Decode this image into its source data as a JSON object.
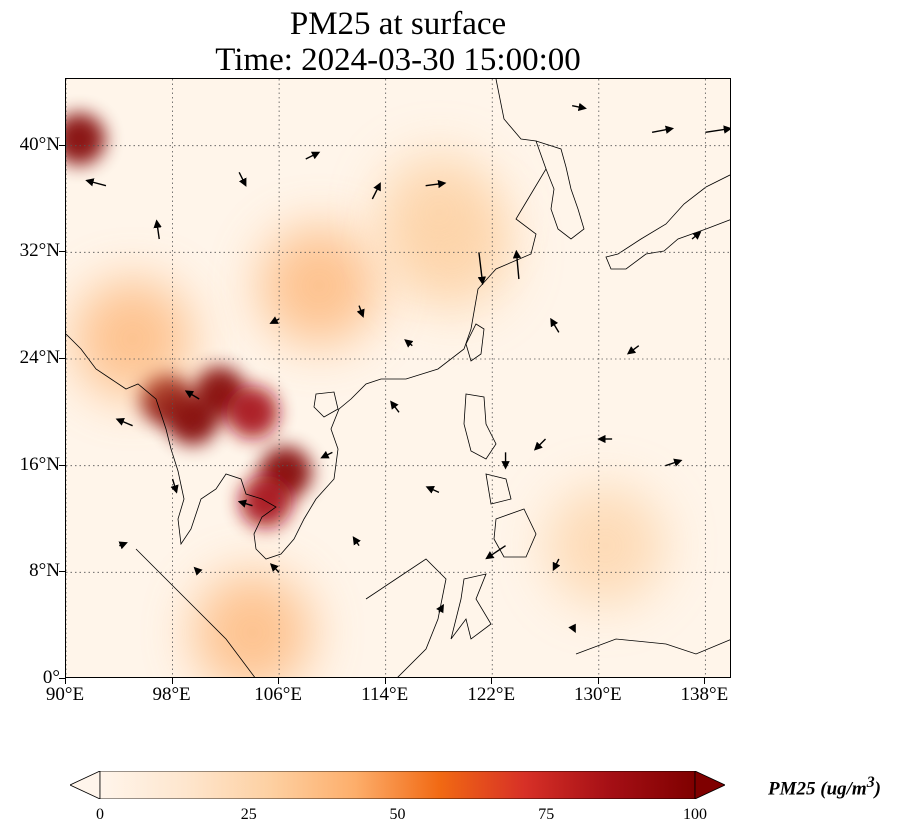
{
  "title": {
    "line1": "PM25 at surface",
    "line2": "Time: 2024-03-30 15:00:00"
  },
  "map": {
    "extent": {
      "lon_min": 90,
      "lon_max": 140,
      "lat_min": 0,
      "lat_max": 45
    },
    "lat_ticks": [
      {
        "value": 0,
        "label": "0°"
      },
      {
        "value": 8,
        "label": "8°N"
      },
      {
        "value": 16,
        "label": "16°N"
      },
      {
        "value": 24,
        "label": "24°N"
      },
      {
        "value": 32,
        "label": "32°N"
      },
      {
        "value": 40,
        "label": "40°N"
      }
    ],
    "lon_ticks": [
      {
        "value": 90,
        "label": "90°E"
      },
      {
        "value": 98,
        "label": "98°E"
      },
      {
        "value": 106,
        "label": "106°E"
      },
      {
        "value": 114,
        "label": "114°E"
      },
      {
        "value": 122,
        "label": "122°E"
      },
      {
        "value": 130,
        "label": "130°E"
      },
      {
        "value": 138,
        "label": "138°E"
      }
    ],
    "gridlines": true,
    "colors": {
      "background": "#fff5ea",
      "coastline": "#000000",
      "grid": "#555555",
      "vector": "#000000"
    },
    "pm25_hotspots": [
      {
        "lon": 97.5,
        "lat": 21.0,
        "value": 100
      },
      {
        "lon": 99.5,
        "lat": 19.5,
        "value": 100
      },
      {
        "lon": 101.5,
        "lat": 21.5,
        "value": 95
      },
      {
        "lon": 104.0,
        "lat": 20.0,
        "value": 80
      },
      {
        "lon": 106.5,
        "lat": 15.5,
        "value": 95
      },
      {
        "lon": 105.0,
        "lat": 13.3,
        "value": 90
      },
      {
        "lon": 91.0,
        "lat": 40.5,
        "value": 100
      },
      {
        "lon": 95.0,
        "lat": 25.5,
        "value": 45
      },
      {
        "lon": 109.0,
        "lat": 29.5,
        "value": 40
      },
      {
        "lon": 119.0,
        "lat": 32.0,
        "value": 35
      },
      {
        "lon": 130.5,
        "lat": 10.0,
        "value": 22
      },
      {
        "lon": 118.0,
        "lat": 35.0,
        "value": 25
      },
      {
        "lon": 104.0,
        "lat": 3.5,
        "value": 45
      }
    ],
    "wind_vectors": [
      {
        "lon": 93,
        "lat": 37,
        "u": -1.5,
        "v": 0.4
      },
      {
        "lon": 97,
        "lat": 33,
        "u": -0.2,
        "v": 1.4
      },
      {
        "lon": 103,
        "lat": 38,
        "u": 0.5,
        "v": -1.0
      },
      {
        "lon": 108,
        "lat": 39,
        "u": 1.0,
        "v": 0.5
      },
      {
        "lon": 113,
        "lat": 36,
        "u": 0.6,
        "v": 1.2
      },
      {
        "lon": 117,
        "lat": 37,
        "u": 1.5,
        "v": 0.2
      },
      {
        "lon": 121,
        "lat": 32,
        "u": 0.3,
        "v": -2.5
      },
      {
        "lon": 124,
        "lat": 30,
        "u": -0.2,
        "v": 2.2
      },
      {
        "lon": 127,
        "lat": 26,
        "u": -0.6,
        "v": 1.0
      },
      {
        "lon": 133,
        "lat": 25,
        "u": -0.8,
        "v": -0.6
      },
      {
        "lon": 137,
        "lat": 33,
        "u": 0.6,
        "v": 0.5
      },
      {
        "lon": 134,
        "lat": 41,
        "u": 1.6,
        "v": 0.3
      },
      {
        "lon": 138,
        "lat": 41,
        "u": 2.0,
        "v": 0.3
      },
      {
        "lon": 128,
        "lat": 43,
        "u": 1.0,
        "v": -0.2
      },
      {
        "lon": 100,
        "lat": 21,
        "u": -1.0,
        "v": 0.6
      },
      {
        "lon": 95,
        "lat": 19,
        "u": -1.2,
        "v": 0.5
      },
      {
        "lon": 98,
        "lat": 15,
        "u": 0.3,
        "v": -1.0
      },
      {
        "lon": 104,
        "lat": 13,
        "u": -1.0,
        "v": 0.3
      },
      {
        "lon": 110,
        "lat": 17,
        "u": -0.8,
        "v": -0.4
      },
      {
        "lon": 115,
        "lat": 20,
        "u": -0.6,
        "v": 0.8
      },
      {
        "lon": 118,
        "lat": 14,
        "u": -0.9,
        "v": 0.4
      },
      {
        "lon": 123,
        "lat": 17,
        "u": 0.0,
        "v": -1.2
      },
      {
        "lon": 126,
        "lat": 18,
        "u": -0.8,
        "v": -0.8
      },
      {
        "lon": 131,
        "lat": 18,
        "u": -1.0,
        "v": 0.0
      },
      {
        "lon": 135,
        "lat": 16,
        "u": 1.2,
        "v": 0.4
      },
      {
        "lon": 123,
        "lat": 10,
        "u": -1.5,
        "v": -1.0
      },
      {
        "lon": 127,
        "lat": 9,
        "u": -0.4,
        "v": -0.8
      },
      {
        "lon": 112,
        "lat": 10,
        "u": -0.4,
        "v": 0.6
      },
      {
        "lon": 106,
        "lat": 8,
        "u": -0.6,
        "v": 0.6
      },
      {
        "lon": 100,
        "lat": 8,
        "u": -0.3,
        "v": 0.3
      },
      {
        "lon": 94,
        "lat": 10,
        "u": 0.5,
        "v": 0.2
      },
      {
        "lon": 112,
        "lat": 28,
        "u": 0.3,
        "v": -0.8
      },
      {
        "lon": 106,
        "lat": 27,
        "u": -0.6,
        "v": -0.3
      },
      {
        "lon": 116,
        "lat": 25,
        "u": -0.5,
        "v": 0.4
      },
      {
        "lon": 118,
        "lat": 5,
        "u": 0.3,
        "v": 0.5
      },
      {
        "lon": 128,
        "lat": 4,
        "u": 0.2,
        "v": -0.4
      }
    ]
  },
  "colorbar": {
    "min": 0,
    "max": 100,
    "ticks": [
      {
        "value": 0,
        "label": "0"
      },
      {
        "value": 25,
        "label": "25"
      },
      {
        "value": 50,
        "label": "50"
      },
      {
        "value": 75,
        "label": "75"
      },
      {
        "value": 100,
        "label": "100"
      }
    ],
    "colormap": [
      "#fff5eb",
      "#fee6ce",
      "#fdd0a2",
      "#fdae6b",
      "#f16913",
      "#d73027",
      "#a50f15",
      "#7f0000"
    ],
    "label_prefix": "PM25 (ug/m",
    "label_exp": "3",
    "label_suffix": ")"
  }
}
